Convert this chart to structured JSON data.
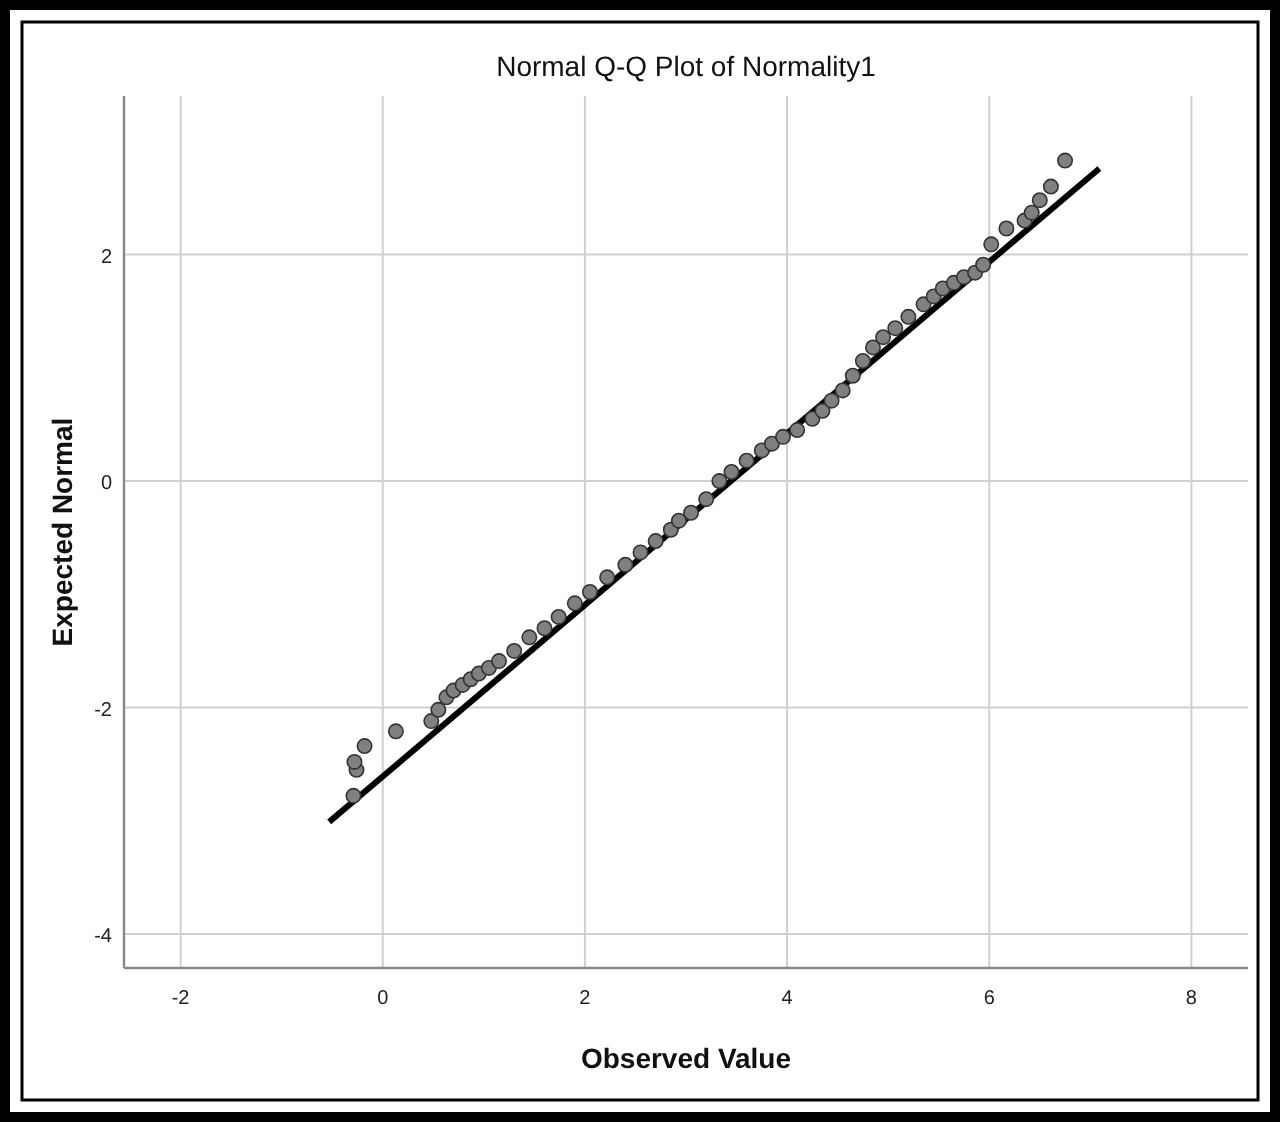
{
  "chart_data": {
    "type": "scatter",
    "title": "Normal Q-Q Plot of Normality1",
    "xlabel": "Observed Value",
    "ylabel": "Expected Normal",
    "xlim": [
      -2.56,
      8.56
    ],
    "ylim": [
      -4.3,
      3.4
    ],
    "xticks": [
      -2,
      0,
      2,
      4,
      6,
      8
    ],
    "yticks": [
      -4,
      -2,
      0,
      2
    ],
    "grid": true,
    "series": [
      {
        "type": "scatter",
        "marker": "circle",
        "color": "#808080",
        "x": [
          -0.29,
          -0.26,
          -0.28,
          -0.18,
          0.13,
          0.48,
          0.55,
          0.63,
          0.7,
          0.79,
          0.87,
          0.95,
          1.05,
          1.15,
          1.3,
          1.45,
          1.6,
          1.74,
          1.9,
          2.05,
          2.22,
          2.4,
          2.55,
          2.7,
          2.85,
          2.93,
          3.05,
          3.2,
          3.33,
          3.45,
          3.6,
          3.75,
          3.85,
          3.96,
          4.1,
          4.25,
          4.35,
          4.44,
          4.55,
          4.65,
          4.75,
          4.85,
          4.95,
          5.07,
          5.2,
          5.35,
          5.45,
          5.54,
          5.65,
          5.75,
          5.86,
          5.94,
          6.02,
          6.17,
          6.35,
          6.42,
          6.5,
          6.61,
          6.75
        ],
        "values": [
          -2.78,
          -2.55,
          -2.48,
          -2.34,
          -2.21,
          -2.12,
          -2.02,
          -1.91,
          -1.85,
          -1.8,
          -1.75,
          -1.7,
          -1.65,
          -1.59,
          -1.5,
          -1.38,
          -1.3,
          -1.2,
          -1.08,
          -0.98,
          -0.85,
          -0.74,
          -0.63,
          -0.53,
          -0.43,
          -0.35,
          -0.28,
          -0.16,
          0.0,
          0.08,
          0.18,
          0.27,
          0.33,
          0.39,
          0.45,
          0.55,
          0.62,
          0.71,
          0.8,
          0.93,
          1.06,
          1.18,
          1.27,
          1.35,
          1.45,
          1.56,
          1.63,
          1.7,
          1.75,
          1.8,
          1.84,
          1.91,
          2.09,
          2.23,
          2.3,
          2.37,
          2.48,
          2.6,
          2.83
        ]
      },
      {
        "type": "line",
        "marker": "none",
        "color": "#000000",
        "x": [
          -0.53,
          7.09
        ],
        "values": [
          -3.01,
          2.76
        ]
      }
    ]
  }
}
